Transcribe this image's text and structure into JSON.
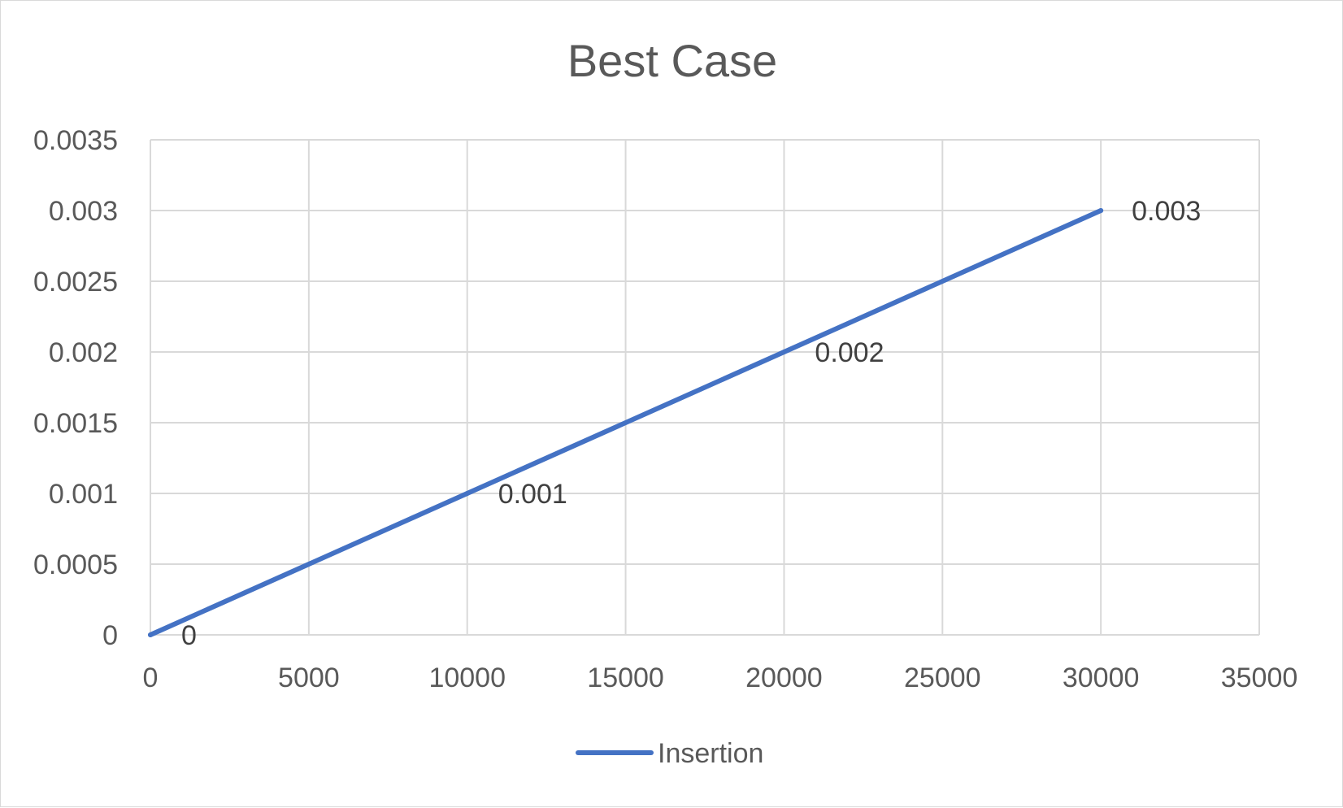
{
  "chart_data": {
    "type": "scatter",
    "title": "Best Case",
    "xlabel": "",
    "ylabel": "",
    "xlim": [
      0,
      35000
    ],
    "ylim": [
      0,
      0.0035
    ],
    "x_ticks": [
      "0",
      "5000",
      "10000",
      "15000",
      "20000",
      "25000",
      "30000",
      "35000"
    ],
    "y_ticks": [
      "0",
      "0.0005",
      "0.001",
      "0.0015",
      "0.002",
      "0.0025",
      "0.003",
      "0.0035"
    ],
    "grid": true,
    "legend_position": "bottom",
    "series": [
      {
        "name": "Insertion",
        "color": "#4472c4",
        "line": true,
        "points": [
          {
            "x": 0,
            "y": 0,
            "label": "0"
          },
          {
            "x": 10000,
            "y": 0.001,
            "label": "0.001"
          },
          {
            "x": 20000,
            "y": 0.002,
            "label": "0.002"
          },
          {
            "x": 30000,
            "y": 0.003,
            "label": "0.003"
          }
        ]
      }
    ]
  }
}
